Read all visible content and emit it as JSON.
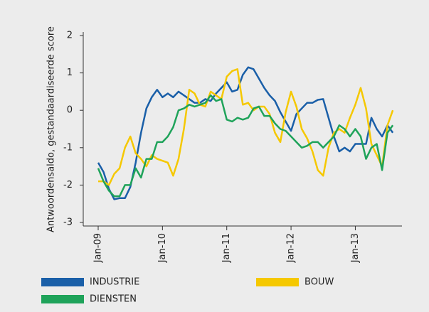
{
  "chart_data": {
    "type": "line",
    "y_label": "Antwoordensaldo, gestandaardiseerde score",
    "categories": [
      "Jan-09",
      null,
      null,
      null,
      null,
      null,
      null,
      null,
      null,
      null,
      null,
      null,
      "Jan-10",
      null,
      null,
      null,
      null,
      null,
      null,
      null,
      null,
      null,
      null,
      null,
      "Jan-11",
      null,
      null,
      null,
      null,
      null,
      null,
      null,
      null,
      null,
      null,
      null,
      "Jan-12",
      null,
      null,
      null,
      null,
      null,
      null,
      null,
      null,
      null,
      null,
      null,
      "Jan-13",
      null,
      null,
      null,
      null,
      null,
      null,
      null
    ],
    "ylim": [
      -3,
      2
    ],
    "yticks": [
      -3,
      -2,
      -1,
      0,
      1,
      2
    ],
    "legend": "bottom",
    "series": [
      {
        "name": "INDUSTRIE",
        "color": "#1a5fa8",
        "values": [
          -1.4,
          -1.65,
          -2.1,
          -2.38,
          -2.35,
          -2.35,
          -2.05,
          -1.4,
          -0.6,
          0.05,
          0.35,
          0.55,
          0.35,
          0.45,
          0.35,
          0.5,
          0.4,
          0.3,
          0.2,
          0.2,
          0.3,
          0.25,
          0.45,
          0.6,
          0.75,
          0.5,
          0.55,
          0.95,
          1.15,
          1.1,
          0.85,
          0.6,
          0.4,
          0.25,
          -0.05,
          -0.3,
          -0.55,
          -0.1,
          0.05,
          0.2,
          0.2,
          0.28,
          0.3,
          -0.2,
          -0.7,
          -1.1,
          -1.0,
          -1.1,
          -0.9,
          -0.9,
          -0.9,
          -0.2,
          -0.5,
          -0.7,
          -0.4,
          -0.6
        ]
      },
      {
        "name": "BOUW",
        "color": "#f5c800",
        "values": [
          -1.9,
          -1.9,
          -2.0,
          -1.7,
          -1.55,
          -1.0,
          -0.7,
          -1.15,
          -1.3,
          -1.5,
          -1.2,
          -1.3,
          -1.35,
          -1.4,
          -1.75,
          -1.3,
          -0.5,
          0.55,
          0.45,
          0.15,
          0.1,
          0.5,
          0.4,
          0.3,
          0.9,
          1.05,
          1.1,
          0.15,
          0.2,
          0.0,
          0.1,
          0.1,
          -0.1,
          -0.6,
          -0.85,
          -0.05,
          0.5,
          0.1,
          -0.5,
          -0.75,
          -1.1,
          -1.6,
          -1.75,
          -1.0,
          -0.6,
          -0.5,
          -0.6,
          -0.2,
          0.15,
          0.6,
          0.05,
          -0.9,
          -1.2,
          -1.5,
          -0.4,
          0.0
        ]
      },
      {
        "name": "DIENSTEN",
        "color": "#1fa35a",
        "values": [
          -1.55,
          -1.9,
          -2.15,
          -2.3,
          -2.3,
          -2.0,
          -2.0,
          -1.55,
          -1.8,
          -1.3,
          -1.3,
          -0.85,
          -0.85,
          -0.7,
          -0.45,
          0.0,
          0.05,
          0.15,
          0.1,
          0.15,
          0.2,
          0.4,
          0.25,
          0.3,
          -0.25,
          -0.3,
          -0.2,
          -0.25,
          -0.2,
          0.05,
          0.1,
          -0.15,
          -0.15,
          -0.35,
          -0.5,
          -0.55,
          -0.7,
          -0.85,
          -1.0,
          -0.95,
          -0.85,
          -0.85,
          -1.0,
          -0.85,
          -0.7,
          -0.4,
          -0.5,
          -0.7,
          -0.5,
          -0.7,
          -1.3,
          -1.0,
          -0.9,
          -1.6,
          -0.6,
          -0.4
        ]
      }
    ]
  }
}
